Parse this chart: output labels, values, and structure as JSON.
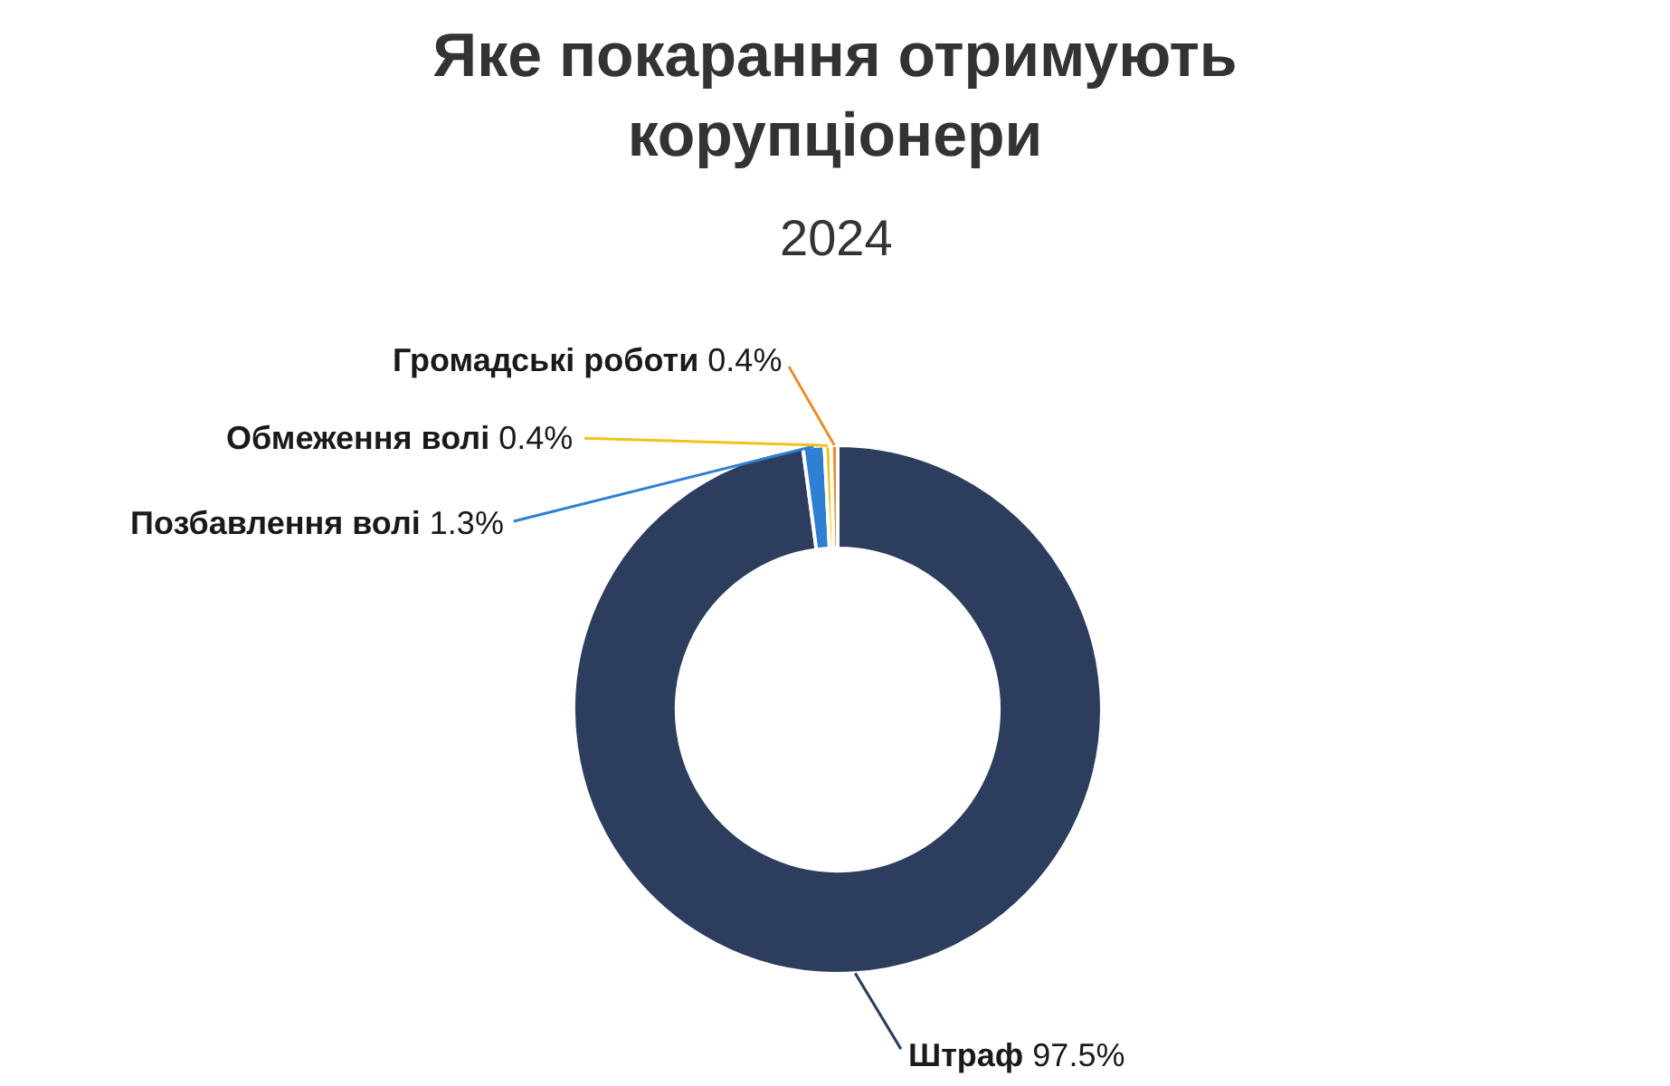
{
  "chart_data": {
    "type": "donut",
    "title": "Яке покарання отримують корупціонери",
    "subtitle": "2024",
    "categories": [
      "Штраф",
      "Позбавлення волі",
      "Обмеження волі",
      "Громадські роботи"
    ],
    "values": [
      97.5,
      1.3,
      0.4,
      0.4
    ],
    "value_labels": [
      "97.5%",
      "1.3%",
      "0.4%",
      "0.4%"
    ],
    "colors": [
      "#2d3d5e",
      "#2f7fd3",
      "#f1c21b",
      "#e88f2c"
    ]
  }
}
